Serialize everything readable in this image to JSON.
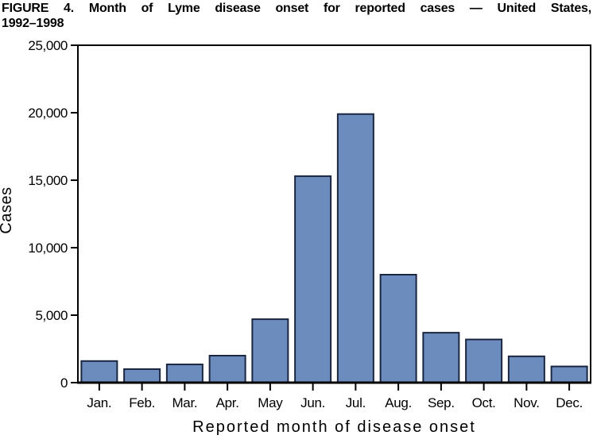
{
  "figure_title": {
    "line1": "FIGURE 4. Month of Lyme disease onset for reported cases — United States,",
    "line2": "1992–1998"
  },
  "chart_data": {
    "type": "bar",
    "title": "FIGURE 4. Month of Lyme disease onset for reported cases — United States, 1992–1998",
    "categories": [
      "Jan.",
      "Feb.",
      "Mar.",
      "Apr.",
      "May",
      "Jun.",
      "Jul.",
      "Aug.",
      "Sep.",
      "Oct.",
      "Nov.",
      "Dec."
    ],
    "values": [
      1600,
      1000,
      1350,
      2000,
      4700,
      15300,
      19900,
      8000,
      3700,
      3200,
      1950,
      1200
    ],
    "xlabel": "Reported month of disease onset",
    "ylabel": "Cases",
    "ylim": [
      0,
      25000
    ],
    "yticks": [
      {
        "value": 0,
        "label": "0"
      },
      {
        "value": 5000,
        "label": "5,000"
      },
      {
        "value": 10000,
        "label": "10,000"
      },
      {
        "value": 15000,
        "label": "15,000"
      },
      {
        "value": 20000,
        "label": "20,000"
      },
      {
        "value": 25000,
        "label": "25,000"
      }
    ],
    "grid": false,
    "legend": false,
    "colors": {
      "bar_fill": "#6D8CBE",
      "bar_stroke": "#1B2740",
      "axis": "#000000",
      "text": "#000000",
      "background": "#FFFFFF"
    }
  }
}
